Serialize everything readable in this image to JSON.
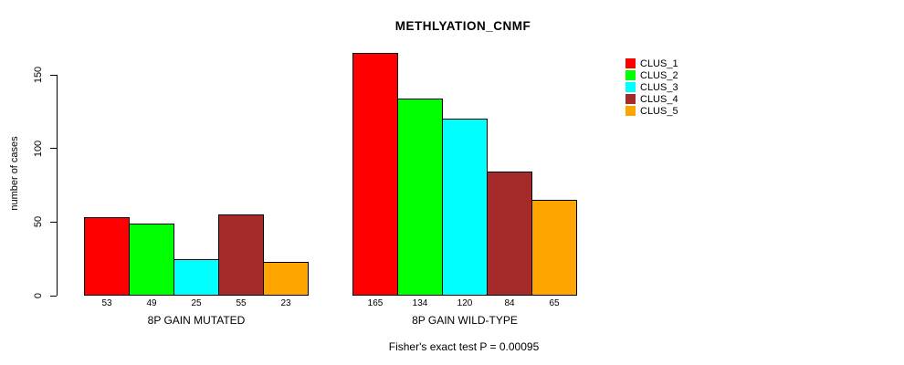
{
  "chart_data": {
    "type": "bar",
    "title": "METHLYATION_CNMF",
    "ylabel": "number of cases",
    "xlabel": "",
    "yticks": [
      0,
      50,
      100,
      150
    ],
    "axis_ylim": [
      0,
      150
    ],
    "grid": false,
    "legend_position": "right",
    "background": "#FFFFFF",
    "bar_border_color": "#000000",
    "categories": [
      "8P GAIN MUTATED",
      "8P GAIN WILD-TYPE"
    ],
    "series": [
      {
        "name": "CLUS_1",
        "color": "#FF0000",
        "values": [
          53,
          165
        ]
      },
      {
        "name": "CLUS_2",
        "color": "#00FF00",
        "values": [
          49,
          134
        ]
      },
      {
        "name": "CLUS_3",
        "color": "#00FFFF",
        "values": [
          25,
          120
        ]
      },
      {
        "name": "CLUS_4",
        "color": "#A52A2A",
        "values": [
          55,
          84
        ]
      },
      {
        "name": "CLUS_5",
        "color": "#FFA500",
        "values": [
          23,
          65
        ]
      }
    ],
    "annotation": "Fisher's exact test P = 0.00095"
  }
}
